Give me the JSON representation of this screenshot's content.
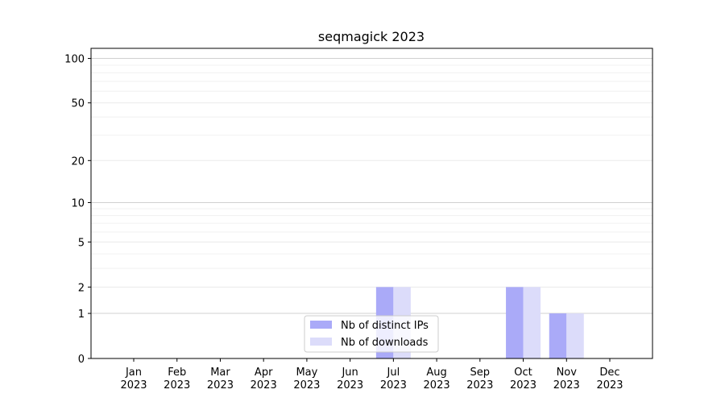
{
  "chart_data": {
    "type": "bar",
    "title": "seqmagick 2023",
    "categories": [
      [
        "Jan",
        "2023"
      ],
      [
        "Feb",
        "2023"
      ],
      [
        "Mar",
        "2023"
      ],
      [
        "Apr",
        "2023"
      ],
      [
        "May",
        "2023"
      ],
      [
        "Jun",
        "2023"
      ],
      [
        "Jul",
        "2023"
      ],
      [
        "Aug",
        "2023"
      ],
      [
        "Sep",
        "2023"
      ],
      [
        "Oct",
        "2023"
      ],
      [
        "Nov",
        "2023"
      ],
      [
        "Dec",
        "2023"
      ]
    ],
    "series": [
      {
        "name": "Nb of distinct IPs",
        "color": "#aaaaf8",
        "values": [
          0,
          0,
          0,
          0,
          0,
          0,
          2,
          0,
          0,
          2,
          1,
          0
        ]
      },
      {
        "name": "Nb of downloads",
        "color": "#dcdcfa",
        "values": [
          0,
          0,
          0,
          0,
          0,
          0,
          2,
          0,
          0,
          2,
          1,
          0
        ]
      }
    ],
    "yscale": "log1p",
    "ylim": [
      0,
      117
    ],
    "yticks": [
      0,
      1,
      2,
      5,
      10,
      20,
      50,
      100
    ],
    "minor_yticks": [
      3,
      4,
      6,
      7,
      8,
      9,
      30,
      40,
      60,
      70,
      80,
      90
    ],
    "grid": true,
    "legend": "lower center"
  }
}
